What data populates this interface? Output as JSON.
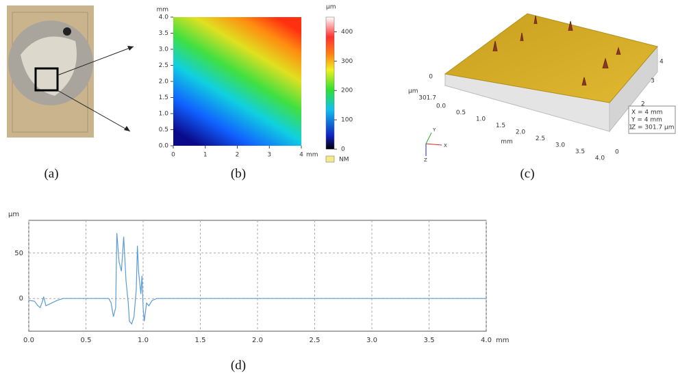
{
  "labels": {
    "a": "(a)",
    "b": "(b)",
    "c": "(c)",
    "d": "(d)"
  },
  "chart_data": [
    {
      "type": "heatmap",
      "x_unit": "mm",
      "y_unit": "mm",
      "xlim": [
        0,
        4
      ],
      "xticks": [
        0,
        1,
        2,
        3,
        4
      ],
      "ylim": [
        0,
        4
      ],
      "yticks": [
        {
          "value": 0,
          "label": "0.0"
        },
        {
          "value": 0.5,
          "label": "0.5"
        },
        {
          "value": 1,
          "label": "1.0"
        },
        {
          "value": 1.5,
          "label": "1.5"
        },
        {
          "value": 2,
          "label": "2.0"
        },
        {
          "value": 2.5,
          "label": "2.5"
        },
        {
          "value": 3,
          "label": "3.0"
        },
        {
          "value": 3.5,
          "label": "3.5"
        },
        {
          "value": 4,
          "label": "4.0"
        }
      ],
      "colorbar": {
        "unit": "μm",
        "lim": [
          0,
          450
        ],
        "ticks": [
          0,
          100,
          200,
          300,
          400
        ],
        "nm_label": "NM"
      }
    },
    {
      "type": "line",
      "x_unit": "mm",
      "y_unit": "μm",
      "color": "#5b9bd5",
      "grid": true,
      "xlim": [
        0,
        4
      ],
      "xticks": [
        {
          "value": 0,
          "label": "0.0"
        },
        {
          "value": 0.5,
          "label": "0.5"
        },
        {
          "value": 1,
          "label": "1.0"
        },
        {
          "value": 1.5,
          "label": "1.5"
        },
        {
          "value": 2,
          "label": "2.0"
        },
        {
          "value": 2.5,
          "label": "2.5"
        },
        {
          "value": 3,
          "label": "3.0"
        },
        {
          "value": 3.5,
          "label": "3.5"
        },
        {
          "value": 4,
          "label": "4.0"
        }
      ],
      "ylim": [
        -36,
        86
      ],
      "yticks": [
        0,
        50
      ],
      "x": [
        0,
        0.05,
        0.08,
        0.1,
        0.12,
        0.13,
        0.15,
        0.2,
        0.25,
        0.3,
        0.5,
        0.7,
        0.72,
        0.74,
        0.76,
        0.77,
        0.79,
        0.81,
        0.83,
        0.85,
        0.87,
        0.88,
        0.9,
        0.92,
        0.94,
        0.95,
        0.96,
        0.98,
        0.99,
        1.0,
        1.01,
        1.03,
        1.05,
        1.08,
        1.12,
        2,
        3,
        4
      ],
      "values": [
        -2,
        -3,
        -8,
        -10,
        -3,
        2,
        -8,
        -5,
        -2,
        0,
        0,
        0,
        -5,
        -20,
        -10,
        72,
        40,
        30,
        68,
        20,
        -5,
        -25,
        -28,
        -20,
        10,
        58,
        30,
        5,
        25,
        -10,
        -25,
        -5,
        -8,
        -2,
        0,
        0,
        0,
        0
      ]
    }
  ],
  "panel_c": {
    "z_unit": "μm",
    "z_top": "0",
    "z_value": "301.7",
    "x_axis_label": "mm",
    "x_ticks": [
      "0.0",
      "0.5",
      "1.0",
      "1.5",
      "2.0",
      "2.5",
      "3.0",
      "3.5",
      "4.0"
    ],
    "y_ticks": [
      "0",
      "1",
      "2",
      "3",
      "4"
    ],
    "info": [
      "X = 4 mm",
      "Y = 4 mm",
      "Z = 301.7 μm"
    ],
    "triad": [
      "X",
      "Y",
      "Z"
    ]
  }
}
